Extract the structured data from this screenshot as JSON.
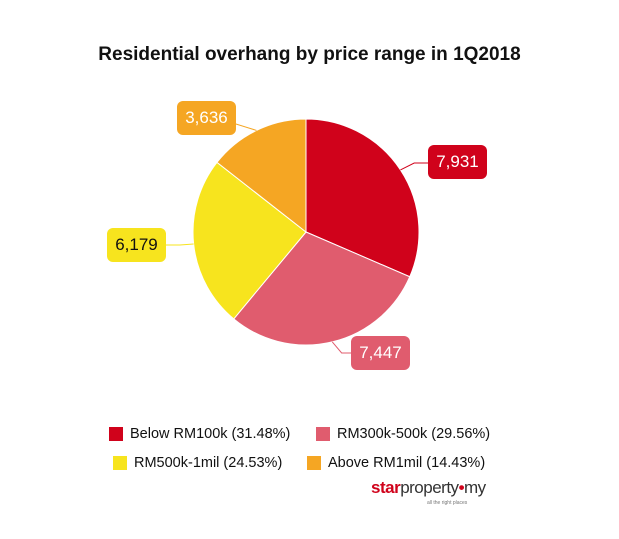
{
  "chart_data": {
    "type": "pie",
    "title": "Residential overhang by price range in 1Q2018",
    "slices": [
      {
        "name": "Below RM100k",
        "value": 7931,
        "label": "7,931",
        "percent": "31.48%",
        "legend": "Below RM100k (31.48%)",
        "color": "#d0021b"
      },
      {
        "name": "RM300k-500k",
        "value": 7447,
        "label": "7,447",
        "percent": "29.56%",
        "legend": "RM300k-500k (29.56%)",
        "color": "#e05c6e"
      },
      {
        "name": "RM500k-1mil",
        "value": 6179,
        "label": "6,179",
        "percent": "24.53%",
        "legend": "RM500k-1mil (24.53%)",
        "color": "#f7e41e"
      },
      {
        "name": "Above RM1mil",
        "value": 3636,
        "label": "3,636",
        "percent": "14.43%",
        "legend": "Above RM1mil (14.43%)",
        "color": "#f5a623"
      }
    ],
    "start_angle": "top",
    "direction": "clockwise",
    "legend_position": "bottom"
  },
  "logo": {
    "brand_a": "star",
    "brand_b": "property",
    "brand_c": "my",
    "tagline": "all the right places"
  }
}
